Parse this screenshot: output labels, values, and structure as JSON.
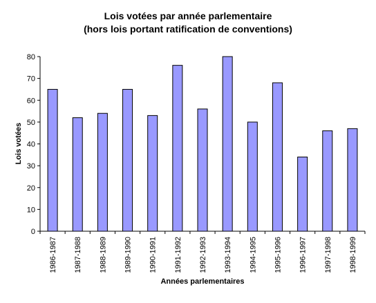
{
  "chart_data": {
    "type": "bar",
    "title": "Lois votées par année parlementaire",
    "subtitle": "(hors lois portant ratification de conventions)",
    "xlabel": "Années parlementaires",
    "ylabel": "Lois votées",
    "ylim": [
      0,
      80
    ],
    "yticks": [
      0,
      10,
      20,
      30,
      40,
      50,
      60,
      70,
      80
    ],
    "grid": false,
    "legend": "none",
    "bar_color": "#9999ff",
    "bar_stroke": "#000000",
    "categories": [
      "1986-1987",
      "1987-1988",
      "1988-1989",
      "1989-1990",
      "1990-1991",
      "1991-1992",
      "1992-1993",
      "1993-1994",
      "1994-1995",
      "1995-1996",
      "1996-1997",
      "1997-1998",
      "1998-1999"
    ],
    "values": [
      65,
      52,
      54,
      65,
      53,
      76,
      56,
      80,
      50,
      68,
      34,
      46,
      47
    ]
  }
}
